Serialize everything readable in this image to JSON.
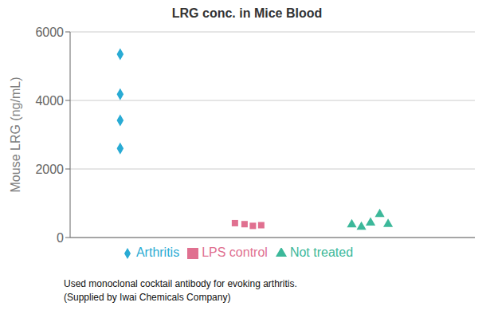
{
  "chart_data": {
    "type": "scatter",
    "title": "LRG conc. in Mice Blood",
    "y_label": "Mouse LRG (ng/mL)",
    "annotations": [
      "Used monoclonal cocktail antibody for evoking arthritis.",
      "(Supplied by Iwai Chemicals Company)"
    ],
    "xlim": [
      0.8,
      10.5
    ],
    "xticks": [
      2,
      5.07,
      8.0
    ],
    "ylim": [
      0,
      6000
    ],
    "yticks": [
      0,
      2000,
      4000,
      6000
    ],
    "grid": "y",
    "tick_labels": "y",
    "legend": "bottom",
    "series": [
      {
        "name": "Arthritis",
        "color": "#29ABD4",
        "marker": "diamond",
        "x": [
          2,
          2,
          2,
          2
        ],
        "values": [
          2600,
          3420,
          4180,
          5350
        ]
      },
      {
        "name": "LPS control",
        "color": "#E07090",
        "marker": "square",
        "x": [
          4.75,
          4.98,
          5.18,
          5.38
        ],
        "values": [
          420,
          390,
          340,
          360
        ]
      },
      {
        "name": "Not treated",
        "color": "#3CB89A",
        "marker": "triangle",
        "x": [
          7.55,
          7.78,
          8.0,
          8.22,
          8.42
        ],
        "values": [
          380,
          310,
          430,
          680,
          390
        ]
      }
    ]
  }
}
